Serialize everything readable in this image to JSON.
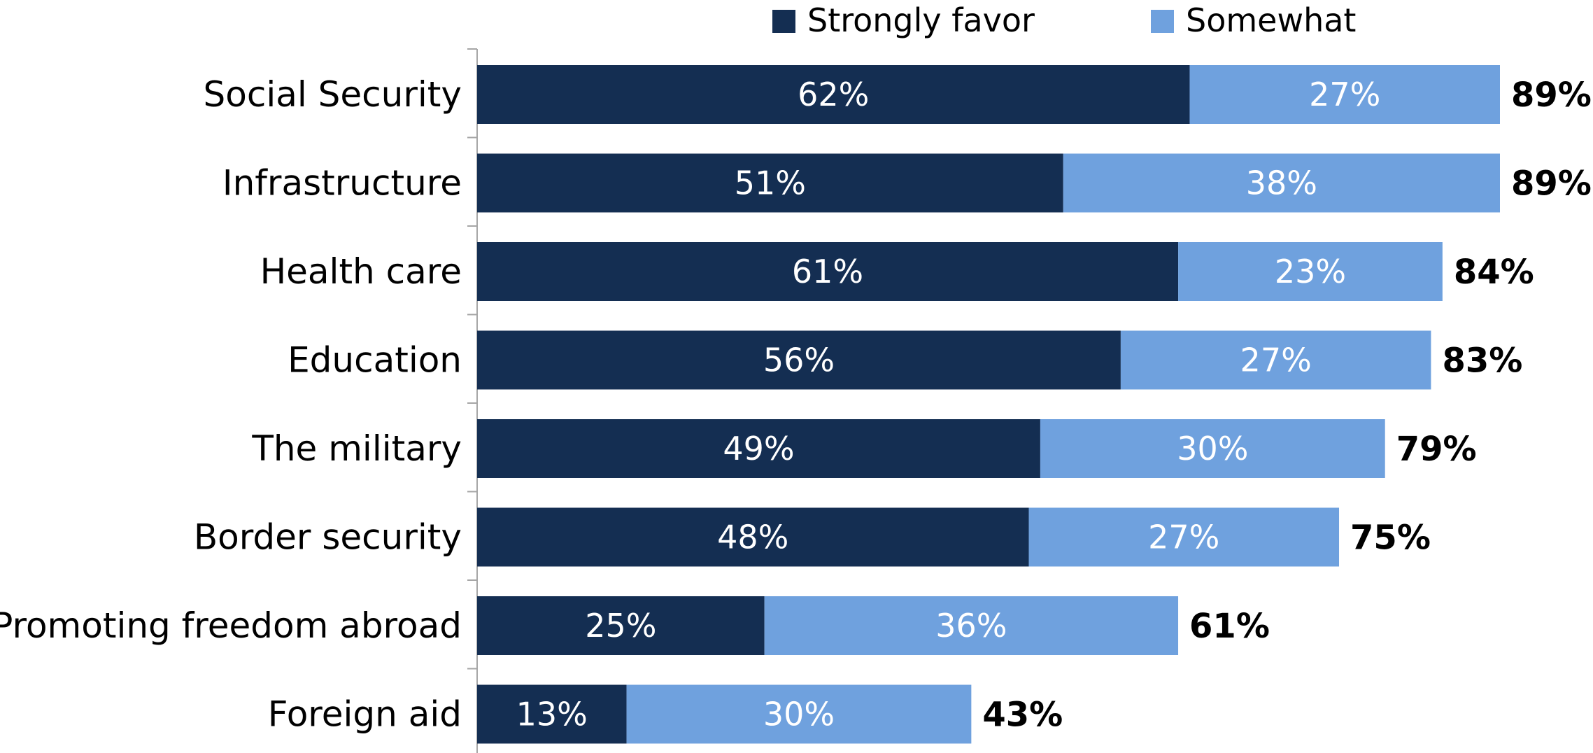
{
  "chart_data": {
    "type": "bar",
    "orientation": "horizontal",
    "stacked": true,
    "categories": [
      "Social Security",
      "Infrastructure",
      "Health care",
      "Education",
      "The military",
      "Border security",
      "Promoting freedom abroad",
      "Foreign aid"
    ],
    "series": [
      {
        "name": "Strongly favor",
        "color": "#142e52",
        "values": [
          62,
          51,
          61,
          56,
          49,
          48,
          25,
          13
        ],
        "labels": [
          "62%",
          "51%",
          "61%",
          "56%",
          "49%",
          "48%",
          "25%",
          "13%"
        ]
      },
      {
        "name": "Somewhat",
        "color": "#6fa1de",
        "values": [
          27,
          38,
          23,
          27,
          30,
          27,
          36,
          30
        ],
        "labels": [
          "27%",
          "38%",
          "23%",
          "27%",
          "30%",
          "27%",
          "36%",
          "30%"
        ]
      }
    ],
    "totals": [
      89,
      89,
      84,
      83,
      79,
      75,
      61,
      43
    ],
    "total_labels": [
      "89%",
      "89%",
      "84%",
      "83%",
      "79%",
      "75%",
      "61%",
      "43%"
    ],
    "xlim": [
      0,
      89
    ],
    "legend_position": "top",
    "grid": false,
    "title": "",
    "xlabel": "",
    "ylabel": ""
  }
}
